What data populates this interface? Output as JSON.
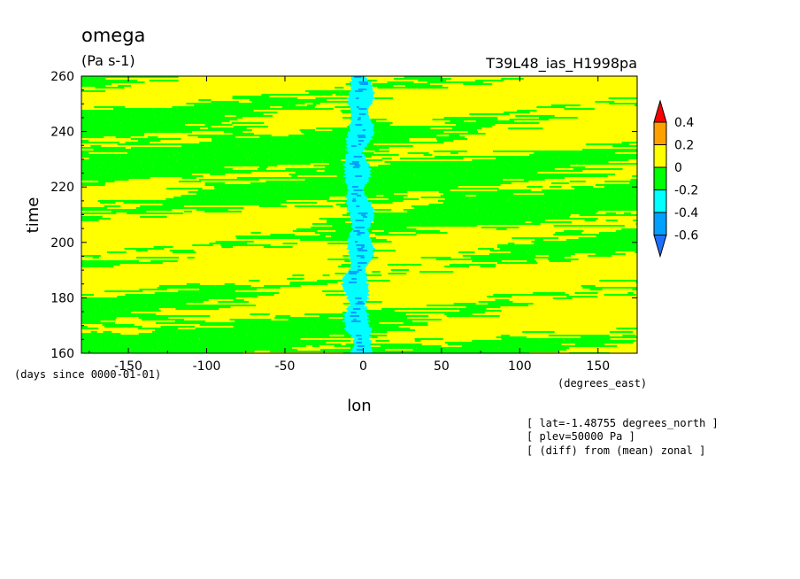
{
  "chart_data": {
    "type": "heatmap",
    "title": "omega",
    "units": "(Pa s-1)",
    "dataset": "T39L48_ias_H1998pa",
    "xlabel": "lon",
    "ylabel": "time",
    "x_units": "(degrees_east)",
    "y_units": "(days since 0000-01-01)",
    "xlim": [
      -180,
      175
    ],
    "ylim": [
      160,
      260
    ],
    "x_ticks": [
      -150,
      -100,
      -50,
      0,
      50,
      100,
      150
    ],
    "y_ticks": [
      160,
      180,
      200,
      220,
      240,
      260
    ],
    "x_tick_labels": [
      "-150",
      "-100",
      "-50",
      "0",
      "50",
      "100",
      "150"
    ],
    "y_tick_labels": [
      "160",
      "180",
      "200",
      "220",
      "240",
      "260"
    ],
    "levels": [
      -0.6,
      -0.4,
      -0.2,
      0,
      0.2,
      0.4
    ],
    "level_labels": [
      "0.4",
      "0.2",
      "0",
      "-0.2",
      "-0.4",
      "-0.6"
    ],
    "colors": {
      "below_-0.6": "#1e6fff",
      "-0.6_-0.4": "#00a0ff",
      "-0.4_-0.2": "#00ffff",
      "-0.2_0": "#00ff00",
      "0_0.2": "#ffff00",
      "0.2_0.4": "#ffa000",
      "above_0.4": "#ff0000"
    },
    "annotations": [
      "[ lat=-1.48755 degrees_north ]",
      "[ plev=50000 Pa ]",
      "[ (diff) from (mean) zonal ]"
    ],
    "field_description": "Alternating positive (yellow, 0 to 0.2) and negative (green, -0.2 to 0) omega anomalies across all longitudes; a band of -0.4 to -0.2 (cyan) and -0.6 to -0.4 values concentrated near longitude 0 (about -20 to 10 degrees east) throughout the record"
  }
}
